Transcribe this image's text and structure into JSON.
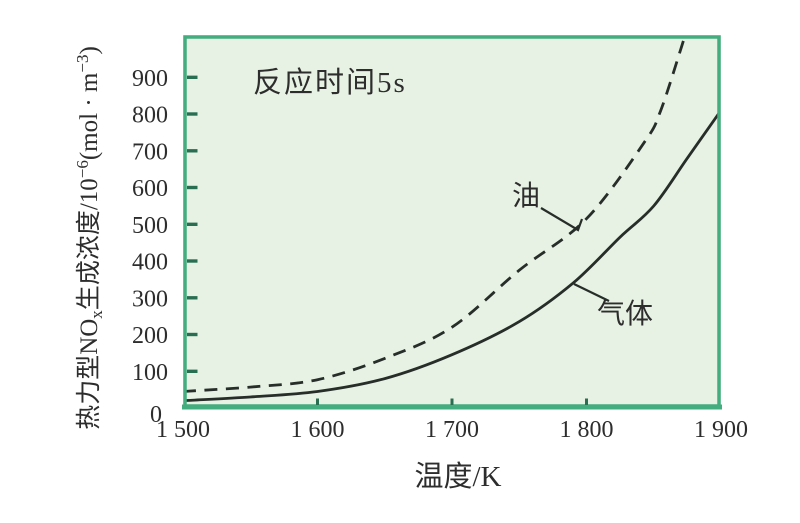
{
  "chart_data": {
    "type": "line",
    "annotation": "反应时间5s",
    "xlabel": "温度/K",
    "ylabel_parts": [
      {
        "text": "热力型NO"
      },
      {
        "text": "x",
        "script": "sub"
      },
      {
        "text": "生成浓度/10"
      },
      {
        "text": "−6",
        "script": "sup"
      },
      {
        "text": "(mol · m"
      },
      {
        "text": "−3",
        "script": "sup"
      },
      {
        "text": ")"
      }
    ],
    "xlim": [
      1500,
      1900
    ],
    "ylim": [
      0,
      1015
    ],
    "grid": false,
    "legend_position": "inline-curve-labels",
    "x_ticks": [
      {
        "value": 1500,
        "label": "1 500",
        "tick_mark": false
      },
      {
        "value": 1600,
        "label": "1 600",
        "tick_mark": true
      },
      {
        "value": 1700,
        "label": "1 700",
        "tick_mark": true
      },
      {
        "value": 1800,
        "label": "1 800",
        "tick_mark": true
      },
      {
        "value": 1900,
        "label": "1 900",
        "tick_mark": false
      }
    ],
    "y_ticks": [
      {
        "value": 0,
        "label": "0"
      },
      {
        "value": 100,
        "label": "100"
      },
      {
        "value": 200,
        "label": "200"
      },
      {
        "value": 300,
        "label": "300"
      },
      {
        "value": 400,
        "label": "400"
      },
      {
        "value": 500,
        "label": "500"
      },
      {
        "value": 600,
        "label": "600"
      },
      {
        "value": 700,
        "label": "700"
      },
      {
        "value": 800,
        "label": "800"
      },
      {
        "value": 900,
        "label": "900"
      }
    ],
    "series": [
      {
        "name": "油",
        "line_style": "dashed",
        "x": [
          1500,
          1550,
          1600,
          1650,
          1700,
          1750,
          1800,
          1843,
          1855,
          1871,
          1878
        ],
        "y": [
          45,
          57,
          77,
          135,
          220,
          375,
          515,
          723,
          808,
          987,
          1075
        ]
      },
      {
        "name": "气体",
        "line_style": "solid",
        "x": [
          1500,
          1550,
          1600,
          1650,
          1700,
          1750,
          1790,
          1825,
          1850,
          1875,
          1900
        ],
        "y": [
          20,
          30,
          45,
          80,
          145,
          235,
          340,
          465,
          550,
          680,
          810
        ]
      }
    ],
    "colors": {
      "plot_background": "#e7f2e4",
      "frame": "#44ad7f",
      "tick_mark": "#2a6e52",
      "curve": "#272d29",
      "text": "#2d2d2d"
    }
  }
}
